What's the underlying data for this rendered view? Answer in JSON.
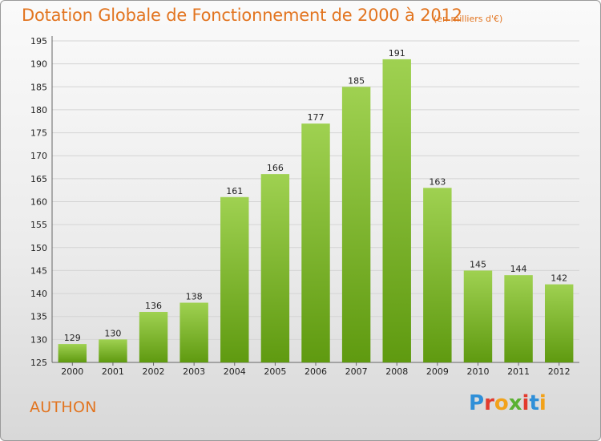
{
  "header": {
    "title": "Dotation Globale de Fonctionnement de 2000 à 2012",
    "subtitle": "(en milliers d'€)"
  },
  "footer": {
    "commune": "AUTHON",
    "logo_text": "Proxiti"
  },
  "colors": {
    "title": "#e2741f",
    "bar_top": "#9fd151",
    "bar_bottom": "#5f9a10",
    "logo_letters": [
      "#2f8fd8",
      "#e23b2e",
      "#f2a21a",
      "#5bb133",
      "#e23b2e",
      "#2f8fd8",
      "#f2a21a"
    ]
  },
  "chart_data": {
    "type": "bar",
    "title": "Dotation Globale de Fonctionnement de 2000 à 2012",
    "subtitle": "(en milliers d'€)",
    "categories": [
      "2000",
      "2001",
      "2002",
      "2003",
      "2004",
      "2005",
      "2006",
      "2007",
      "2008",
      "2009",
      "2010",
      "2011",
      "2012"
    ],
    "values": [
      129,
      130,
      136,
      138,
      161,
      166,
      177,
      185,
      191,
      163,
      145,
      144,
      142
    ],
    "ylim": [
      125,
      195
    ],
    "yticks": [
      125,
      130,
      135,
      140,
      145,
      150,
      155,
      160,
      165,
      170,
      175,
      180,
      185,
      190,
      195
    ],
    "grid": true,
    "xlabel": "",
    "ylabel": ""
  }
}
